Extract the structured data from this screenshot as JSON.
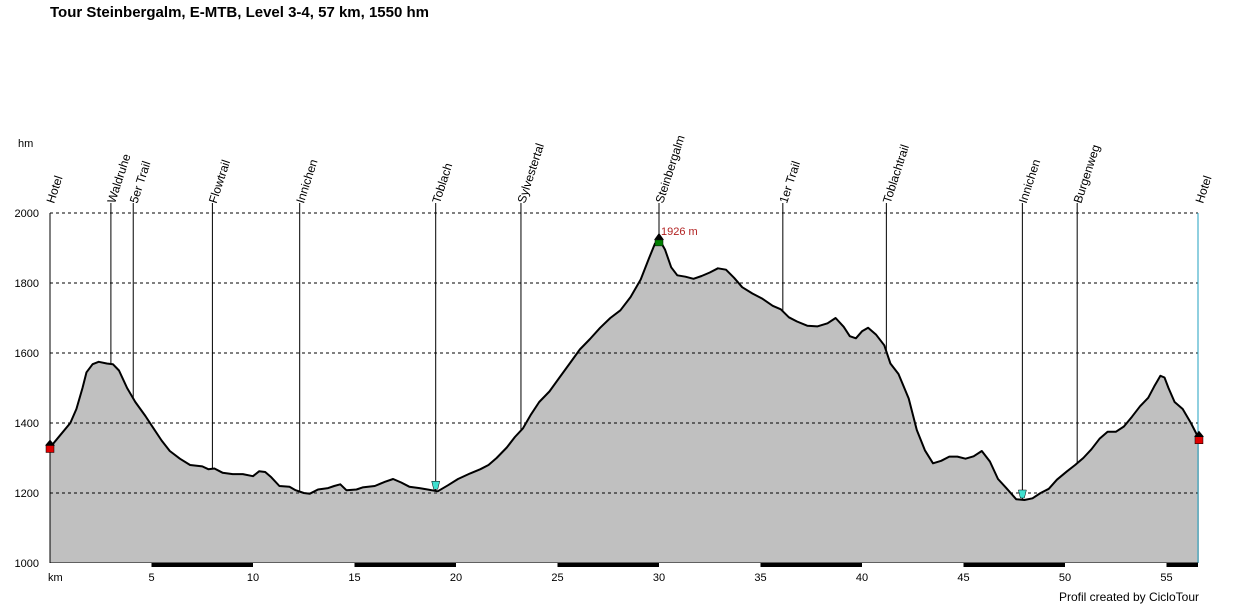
{
  "chart_data": {
    "type": "area",
    "title": "Tour Steinbergalm, E-MTB, Level 3-4, 57 km, 1550 hm",
    "xlabel": "km",
    "ylabel": "hm",
    "xlim": [
      0,
      56.6
    ],
    "ylim": [
      1000,
      2000
    ],
    "xticks": [
      5,
      10,
      15,
      20,
      25,
      30,
      35,
      40,
      45,
      50,
      55
    ],
    "yticks": [
      1000,
      1200,
      1400,
      1600,
      1800,
      2000
    ],
    "grid": true,
    "fill_color": "#c0c0c0",
    "line_color": "#000000",
    "profile": [
      [
        0,
        1330
      ],
      [
        0.5,
        1365
      ],
      [
        1,
        1400
      ],
      [
        1.3,
        1440
      ],
      [
        1.6,
        1500
      ],
      [
        1.8,
        1545
      ],
      [
        2.1,
        1568
      ],
      [
        2.4,
        1575
      ],
      [
        2.8,
        1570
      ],
      [
        3.1,
        1568
      ],
      [
        3.4,
        1550
      ],
      [
        3.8,
        1500
      ],
      [
        4.2,
        1460
      ],
      [
        4.7,
        1420
      ],
      [
        5.1,
        1385
      ],
      [
        5.5,
        1350
      ],
      [
        5.9,
        1320
      ],
      [
        6.4,
        1298
      ],
      [
        6.9,
        1280
      ],
      [
        7.5,
        1276
      ],
      [
        7.8,
        1268
      ],
      [
        8.1,
        1270
      ],
      [
        8.5,
        1258
      ],
      [
        9.0,
        1254
      ],
      [
        9.5,
        1254
      ],
      [
        10.0,
        1248
      ],
      [
        10.3,
        1262
      ],
      [
        10.6,
        1260
      ],
      [
        10.9,
        1245
      ],
      [
        11.3,
        1220
      ],
      [
        11.8,
        1218
      ],
      [
        12.1,
        1208
      ],
      [
        12.5,
        1200
      ],
      [
        12.8,
        1198
      ],
      [
        13.2,
        1210
      ],
      [
        13.7,
        1214
      ],
      [
        14.0,
        1220
      ],
      [
        14.3,
        1225
      ],
      [
        14.6,
        1208
      ],
      [
        15.1,
        1210
      ],
      [
        15.4,
        1216
      ],
      [
        16.0,
        1220
      ],
      [
        16.5,
        1232
      ],
      [
        16.9,
        1240
      ],
      [
        17.3,
        1230
      ],
      [
        17.7,
        1218
      ],
      [
        18.2,
        1214
      ],
      [
        18.6,
        1210
      ],
      [
        19.1,
        1205
      ],
      [
        19.6,
        1222
      ],
      [
        20.1,
        1240
      ],
      [
        20.7,
        1256
      ],
      [
        21.2,
        1268
      ],
      [
        21.6,
        1280
      ],
      [
        22.0,
        1300
      ],
      [
        22.5,
        1330
      ],
      [
        22.9,
        1360
      ],
      [
        23.3,
        1385
      ],
      [
        23.7,
        1425
      ],
      [
        24.1,
        1460
      ],
      [
        24.6,
        1490
      ],
      [
        25.1,
        1530
      ],
      [
        25.6,
        1570
      ],
      [
        26.1,
        1610
      ],
      [
        26.6,
        1640
      ],
      [
        27.1,
        1672
      ],
      [
        27.6,
        1700
      ],
      [
        28.1,
        1722
      ],
      [
        28.6,
        1760
      ],
      [
        29.1,
        1810
      ],
      [
        29.5,
        1870
      ],
      [
        29.8,
        1912
      ],
      [
        30.0,
        1926
      ],
      [
        30.3,
        1895
      ],
      [
        30.6,
        1845
      ],
      [
        30.9,
        1822
      ],
      [
        31.3,
        1818
      ],
      [
        31.7,
        1812
      ],
      [
        32.1,
        1820
      ],
      [
        32.5,
        1830
      ],
      [
        32.9,
        1842
      ],
      [
        33.3,
        1838
      ],
      [
        33.7,
        1815
      ],
      [
        34.1,
        1788
      ],
      [
        34.6,
        1770
      ],
      [
        35.1,
        1755
      ],
      [
        35.6,
        1735
      ],
      [
        36.0,
        1725
      ],
      [
        36.4,
        1702
      ],
      [
        36.8,
        1690
      ],
      [
        37.3,
        1678
      ],
      [
        37.8,
        1676
      ],
      [
        38.3,
        1685
      ],
      [
        38.7,
        1700
      ],
      [
        39.1,
        1675
      ],
      [
        39.4,
        1648
      ],
      [
        39.7,
        1642
      ],
      [
        40.0,
        1662
      ],
      [
        40.3,
        1672
      ],
      [
        40.7,
        1652
      ],
      [
        41.1,
        1622
      ],
      [
        41.4,
        1570
      ],
      [
        41.8,
        1540
      ],
      [
        42.3,
        1470
      ],
      [
        42.7,
        1380
      ],
      [
        43.1,
        1322
      ],
      [
        43.5,
        1285
      ],
      [
        43.9,
        1292
      ],
      [
        44.3,
        1304
      ],
      [
        44.7,
        1304
      ],
      [
        45.1,
        1298
      ],
      [
        45.5,
        1305
      ],
      [
        45.9,
        1320
      ],
      [
        46.3,
        1290
      ],
      [
        46.7,
        1240
      ],
      [
        47.1,
        1215
      ],
      [
        47.6,
        1182
      ],
      [
        48.0,
        1180
      ],
      [
        48.4,
        1185
      ],
      [
        48.8,
        1200
      ],
      [
        49.2,
        1212
      ],
      [
        49.6,
        1238
      ],
      [
        50.1,
        1262
      ],
      [
        50.5,
        1280
      ],
      [
        50.9,
        1300
      ],
      [
        51.3,
        1325
      ],
      [
        51.7,
        1355
      ],
      [
        52.1,
        1375
      ],
      [
        52.5,
        1375
      ],
      [
        52.9,
        1390
      ],
      [
        53.3,
        1418
      ],
      [
        53.7,
        1448
      ],
      [
        54.1,
        1472
      ],
      [
        54.4,
        1505
      ],
      [
        54.7,
        1535
      ],
      [
        54.9,
        1530
      ],
      [
        55.1,
        1500
      ],
      [
        55.4,
        1460
      ],
      [
        55.8,
        1440
      ],
      [
        56.2,
        1400
      ],
      [
        56.6,
        1355
      ]
    ],
    "waypoints": [
      {
        "km": 0,
        "label": "Hotel"
      },
      {
        "km": 3.0,
        "label": "Waldruhe"
      },
      {
        "km": 4.1,
        "label": "5er Trail"
      },
      {
        "km": 8.0,
        "label": "Flowtrail"
      },
      {
        "km": 12.3,
        "label": "Innichen"
      },
      {
        "km": 19.0,
        "label": "Toblach"
      },
      {
        "km": 23.2,
        "label": "Sylvestertal"
      },
      {
        "km": 30.0,
        "label": "Steinbergalm"
      },
      {
        "km": 36.1,
        "label": "1er Trail"
      },
      {
        "km": 41.2,
        "label": "Toblachtrail"
      },
      {
        "km": 47.9,
        "label": "Innichen"
      },
      {
        "km": 50.6,
        "label": "Burgenweg"
      },
      {
        "km": 56.6,
        "label": "Hotel"
      }
    ],
    "peak_annotation": {
      "km": 30.0,
      "value": 1926,
      "label": "1926 m",
      "color": "#b22222"
    },
    "markers": [
      {
        "type": "start",
        "km": 0,
        "value": 1330,
        "color": "#e00000"
      },
      {
        "type": "low",
        "km": 19.0,
        "value": 1205,
        "color": "#40e0d0"
      },
      {
        "type": "peak",
        "km": 30.0,
        "value": 1926,
        "color": "#008000"
      },
      {
        "type": "low",
        "km": 47.9,
        "value": 1180,
        "color": "#40e0d0"
      },
      {
        "type": "end",
        "km": 56.6,
        "value": 1355,
        "color": "#e00000"
      }
    ]
  },
  "credit": "Profil created by CicloTour"
}
